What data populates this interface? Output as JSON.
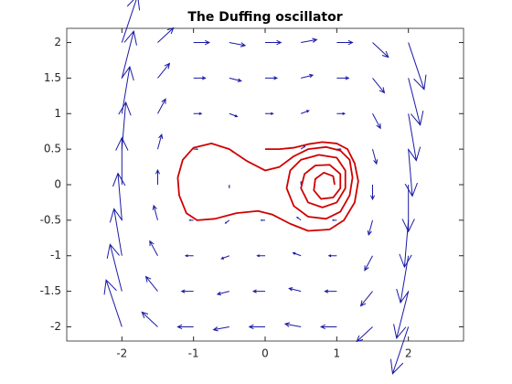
{
  "chart_data": {
    "type": "quiver",
    "title": "The Duffing oscillator",
    "xlim": [
      -2.77,
      2.77
    ],
    "ylim": [
      -2.2,
      2.2
    ],
    "xticks": [
      -2,
      -1,
      0,
      1,
      2
    ],
    "yticks": [
      -2,
      -1.5,
      -1,
      -0.5,
      0,
      0.5,
      1,
      1.5,
      2
    ],
    "series": [
      {
        "type": "quiver",
        "color": "#1a1aa6",
        "x": [
          -2,
          -1.5,
          -1,
          -0.5,
          0,
          0.5,
          1,
          1.5,
          2
        ],
        "y": [
          -2,
          -1.5,
          -1,
          -0.5,
          0,
          0.5,
          1,
          1.5,
          2
        ],
        "u": [
          [
            -2,
            -2,
            -2,
            -2,
            -2,
            -2,
            -2,
            -2,
            -2
          ],
          [
            -1.5,
            -1.5,
            -1.5,
            -1.5,
            -1.5,
            -1.5,
            -1.5,
            -1.5,
            -1.5
          ],
          [
            -1,
            -1,
            -1,
            -1,
            -1,
            -1,
            -1,
            -1,
            -1
          ],
          [
            -0.5,
            -0.5,
            -0.5,
            -0.5,
            -0.5,
            -0.5,
            -0.5,
            -0.5,
            -0.5
          ],
          [
            0,
            0,
            0,
            0,
            0,
            0,
            0,
            0,
            0
          ],
          [
            0.5,
            0.5,
            0.5,
            0.5,
            0.5,
            0.5,
            0.5,
            0.5,
            0.5
          ],
          [
            1,
            1,
            1,
            1,
            1,
            1,
            1,
            1,
            1
          ],
          [
            1.5,
            1.5,
            1.5,
            1.5,
            1.5,
            1.5,
            1.5,
            1.5,
            1.5
          ],
          [
            2,
            2,
            2,
            2,
            2,
            2,
            2,
            2,
            2
          ]
        ],
        "v": [
          [
            6,
            1.875,
            0,
            -0.375,
            0,
            0.375,
            0,
            -1.875,
            -6
          ],
          [
            6,
            1.875,
            0,
            -0.375,
            0,
            0.375,
            0,
            -1.875,
            -6
          ],
          [
            6,
            1.875,
            0,
            -0.375,
            0,
            0.375,
            0,
            -1.875,
            -6
          ],
          [
            6,
            1.875,
            0,
            -0.375,
            0,
            0.375,
            0,
            -1.875,
            -6
          ],
          [
            6,
            1.875,
            0,
            -0.375,
            0,
            0.375,
            0,
            -1.875,
            -6
          ],
          [
            6,
            1.875,
            0,
            -0.375,
            0,
            0.375,
            0,
            -1.875,
            -6
          ],
          [
            6,
            1.875,
            0,
            -0.375,
            0,
            0.375,
            0,
            -1.875,
            -6
          ],
          [
            6,
            1.875,
            0,
            -0.375,
            0,
            0.375,
            0,
            -1.875,
            -6
          ],
          [
            6,
            1.875,
            0,
            -0.375,
            0,
            0.375,
            0,
            -1.875,
            -6
          ]
        ]
      },
      {
        "type": "line",
        "color": "#d00000",
        "x": [
          0,
          0.2,
          0.4,
          0.6,
          0.8,
          1.0,
          1.15,
          1.25,
          1.3,
          1.25,
          1.1,
          0.9,
          0.6,
          0.35,
          0.1,
          -0.1,
          -0.4,
          -0.7,
          -0.95,
          -1.1,
          -1.2,
          -1.22,
          -1.15,
          -1.0,
          -0.75,
          -0.5,
          -0.25,
          0,
          0.2,
          0.4,
          0.6,
          0.85,
          1.05,
          1.18,
          1.22,
          1.18,
          1.05,
          0.85,
          0.6,
          0.4,
          0.3,
          0.35,
          0.5,
          0.75,
          1.0,
          1.12,
          1.12,
          1.0,
          0.8,
          0.6,
          0.5,
          0.55,
          0.7,
          0.9,
          1.05,
          1.05,
          0.95,
          0.78,
          0.68,
          0.7,
          0.82,
          0.95,
          0.97
        ],
        "values": [
          0.5,
          0.5,
          0.52,
          0.57,
          0.6,
          0.58,
          0.5,
          0.3,
          0.05,
          -0.25,
          -0.5,
          -0.63,
          -0.65,
          -0.55,
          -0.42,
          -0.37,
          -0.4,
          -0.48,
          -0.5,
          -0.4,
          -0.15,
          0.1,
          0.35,
          0.52,
          0.58,
          0.5,
          0.33,
          0.2,
          0.25,
          0.4,
          0.5,
          0.53,
          0.48,
          0.35,
          0.1,
          -0.15,
          -0.38,
          -0.48,
          -0.45,
          -0.3,
          -0.05,
          0.2,
          0.35,
          0.42,
          0.38,
          0.2,
          -0.05,
          -0.25,
          -0.32,
          -0.25,
          -0.05,
          0.15,
          0.27,
          0.28,
          0.15,
          -0.05,
          -0.18,
          -0.2,
          -0.08,
          0.08,
          0.17,
          0.12,
          0
        ]
      }
    ]
  }
}
